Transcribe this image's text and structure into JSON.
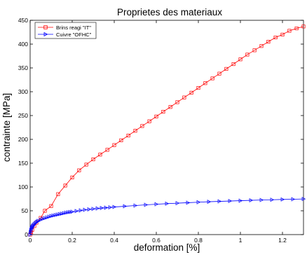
{
  "chart_data": {
    "type": "line",
    "title": "Proprietes des materiaux",
    "xlabel": "deformation [%]",
    "ylabel": "contrainte [MPa]",
    "xlim": [
      0,
      1.3
    ],
    "ylim": [
      0,
      450
    ],
    "xticks": [
      0,
      0.2,
      0.4,
      0.6,
      0.8,
      1,
      1.2
    ],
    "xtick_labels": [
      "0",
      "0.2",
      "0.4",
      "0.6",
      "0.8",
      "1",
      "1.2"
    ],
    "yticks": [
      0,
      50,
      100,
      150,
      200,
      250,
      300,
      350,
      400,
      450
    ],
    "ytick_labels": [
      "0",
      "50",
      "100",
      "150",
      "200",
      "250",
      "300",
      "350",
      "400",
      "450"
    ],
    "grid": false,
    "legend_position": "top-left",
    "series": [
      {
        "name": "Brins reagi \"IT\"",
        "color": "#ff0000",
        "marker": "square",
        "x": [
          0,
          0.005,
          0.01,
          0.02,
          0.03,
          0.05,
          0.07,
          0.1,
          0.133,
          0.167,
          0.2,
          0.233,
          0.267,
          0.3,
          0.333,
          0.367,
          0.4,
          0.433,
          0.467,
          0.5,
          0.533,
          0.567,
          0.6,
          0.633,
          0.667,
          0.7,
          0.733,
          0.767,
          0.8,
          0.833,
          0.867,
          0.9,
          0.933,
          0.967,
          1.0,
          1.033,
          1.067,
          1.1,
          1.133,
          1.167,
          1.2,
          1.233,
          1.267,
          1.3
        ],
        "y": [
          0,
          5,
          10,
          18,
          25,
          35,
          50,
          60,
          85,
          103,
          120,
          135,
          147,
          158,
          168,
          178,
          188,
          198,
          208,
          218,
          228,
          238,
          248,
          258,
          268,
          278,
          288,
          298,
          308,
          318,
          328,
          338,
          348,
          358,
          368,
          378,
          387,
          396,
          405,
          414,
          420,
          428,
          433,
          437
        ]
      },
      {
        "name": "Cuivre \"OFHC\"",
        "color": "#0000ff",
        "marker": "triangle-right",
        "x": [
          0,
          0.002,
          0.004,
          0.006,
          0.008,
          0.01,
          0.013,
          0.016,
          0.02,
          0.025,
          0.03,
          0.035,
          0.04,
          0.05,
          0.06,
          0.07,
          0.08,
          0.09,
          0.1,
          0.11,
          0.12,
          0.13,
          0.14,
          0.15,
          0.16,
          0.17,
          0.18,
          0.19,
          0.2,
          0.22,
          0.24,
          0.26,
          0.28,
          0.3,
          0.32,
          0.34,
          0.36,
          0.38,
          0.4,
          0.45,
          0.5,
          0.55,
          0.6,
          0.65,
          0.7,
          0.75,
          0.8,
          0.85,
          0.9,
          0.95,
          1.0,
          1.05,
          1.1,
          1.15,
          1.2,
          1.25,
          1.3
        ],
        "y": [
          0,
          5,
          9,
          12,
          14,
          16,
          18,
          20,
          22,
          24,
          26,
          27.5,
          29,
          31,
          33,
          34.5,
          36,
          37.5,
          39,
          40,
          41,
          42,
          43,
          44,
          45,
          46,
          46.8,
          47.5,
          48,
          49.5,
          50.8,
          52,
          53,
          54,
          55,
          55.8,
          56.5,
          57.2,
          58,
          59.5,
          61,
          62.5,
          63.8,
          65,
          66,
          67,
          68,
          69,
          69.8,
          70.5,
          71.2,
          72,
          72.6,
          73.2,
          73.8,
          74.3,
          74.8
        ]
      }
    ]
  }
}
